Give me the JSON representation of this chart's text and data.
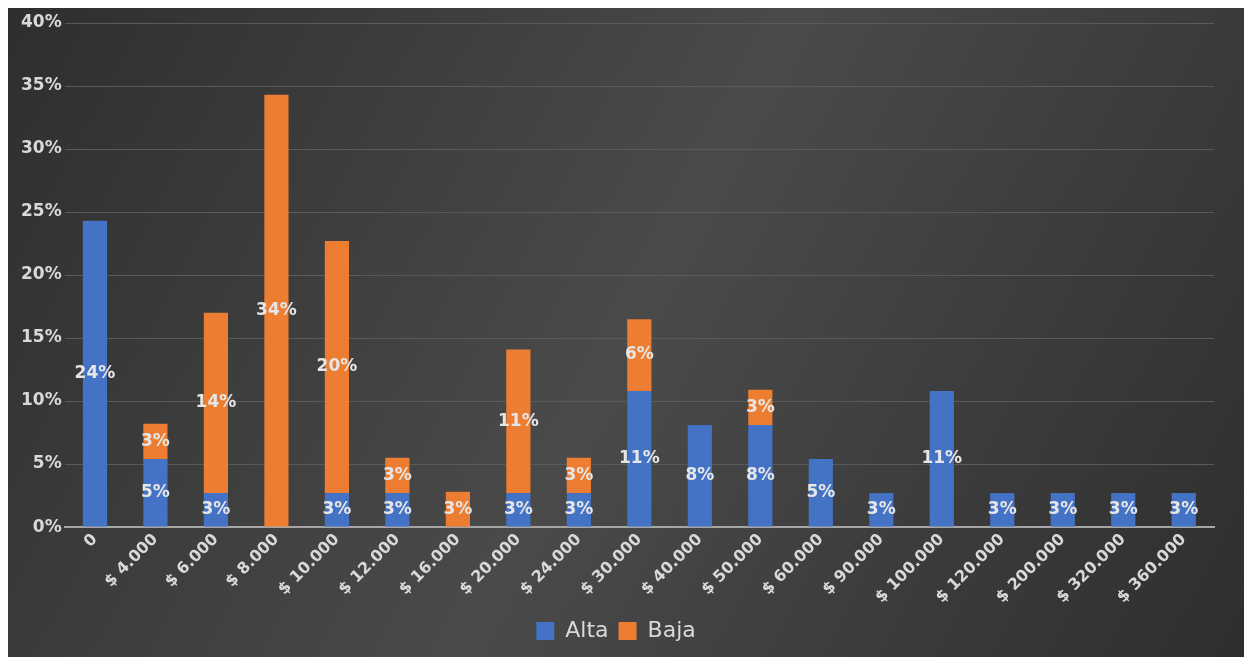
{
  "chart_data": {
    "type": "bar",
    "stacked": true,
    "categories": [
      "0",
      "$ 4.000",
      "$ 6.000",
      "$ 8.000",
      "$ 10.000",
      "$ 12.000",
      "$ 16.000",
      "$ 20.000",
      "$ 24.000",
      "$ 30.000",
      "$ 40.000",
      "$ 50.000",
      "$ 60.000",
      "$ 90.000",
      "$ 100.000",
      "$ 120.000",
      "$ 200.000",
      "$ 320.000",
      "$ 360.000"
    ],
    "series": [
      {
        "name": "Alta",
        "color": "#4472c4",
        "values": [
          24.3,
          5.4,
          2.7,
          null,
          2.7,
          2.7,
          null,
          2.7,
          2.7,
          10.8,
          8.1,
          8.1,
          5.4,
          2.7,
          10.8,
          2.7,
          2.7,
          2.7,
          2.7
        ],
        "value_labels": [
          "24%",
          "5%",
          "3%",
          null,
          "3%",
          "3%",
          null,
          "3%",
          "3%",
          "11%",
          "8%",
          "8%",
          "5%",
          "3%",
          "11%",
          "3%",
          "3%",
          "3%",
          "3%"
        ]
      },
      {
        "name": "Baja",
        "color": "#ed7d31",
        "values": [
          null,
          2.8,
          14.3,
          34.3,
          20.0,
          2.8,
          2.8,
          11.4,
          2.8,
          5.7,
          null,
          2.8,
          null,
          null,
          null,
          null,
          null,
          null,
          null
        ],
        "value_labels": [
          null,
          "3%",
          "14%",
          "34%",
          "20%",
          "3%",
          "3%",
          "11%",
          "3%",
          "6%",
          null,
          "3%",
          null,
          null,
          null,
          null,
          null,
          null,
          null
        ]
      }
    ],
    "ylim": [
      0,
      40
    ],
    "yticks": [
      {
        "value": 0,
        "label": "0%"
      },
      {
        "value": 5,
        "label": "5%"
      },
      {
        "value": 10,
        "label": "10%"
      },
      {
        "value": 15,
        "label": "15%"
      },
      {
        "value": 20,
        "label": "20%"
      },
      {
        "value": 25,
        "label": "25%"
      },
      {
        "value": 30,
        "label": "30%"
      },
      {
        "value": 35,
        "label": "35%"
      },
      {
        "value": 40,
        "label": "40%"
      }
    ],
    "grid": "y",
    "legend": "bottom"
  }
}
